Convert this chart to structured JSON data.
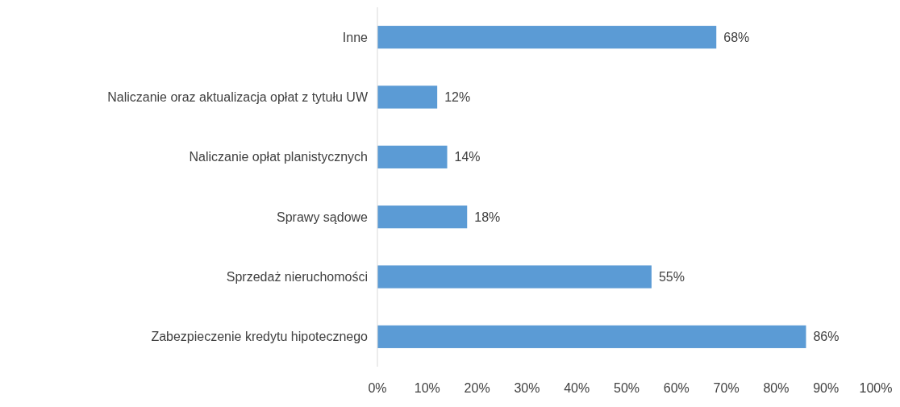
{
  "chart_data": {
    "type": "bar",
    "orientation": "horizontal",
    "categories": [
      "Inne",
      "Naliczanie oraz aktualizacja opłat z tytułu UW",
      "Naliczanie opłat planistycznych",
      "Sprawy sądowe",
      "Sprzedaż nieruchomości",
      "Zabezpieczenie kredytu hipotecznego"
    ],
    "values": [
      68,
      12,
      14,
      18,
      55,
      86
    ],
    "value_labels": [
      "68%",
      "12%",
      "14%",
      "18%",
      "55%",
      "86%"
    ],
    "color": "#5b9bd5",
    "xlim": [
      0,
      100
    ],
    "xticks": [
      {
        "value": 0,
        "label": "0%"
      },
      {
        "value": 10,
        "label": "10%"
      },
      {
        "value": 20,
        "label": "20%"
      },
      {
        "value": 30,
        "label": "30%"
      },
      {
        "value": 40,
        "label": "40%"
      },
      {
        "value": 50,
        "label": "50%"
      },
      {
        "value": 60,
        "label": "60%"
      },
      {
        "value": 70,
        "label": "70%"
      },
      {
        "value": 80,
        "label": "80%"
      },
      {
        "value": 90,
        "label": "90%"
      },
      {
        "value": 100,
        "label": "100%"
      }
    ],
    "grid": false
  }
}
